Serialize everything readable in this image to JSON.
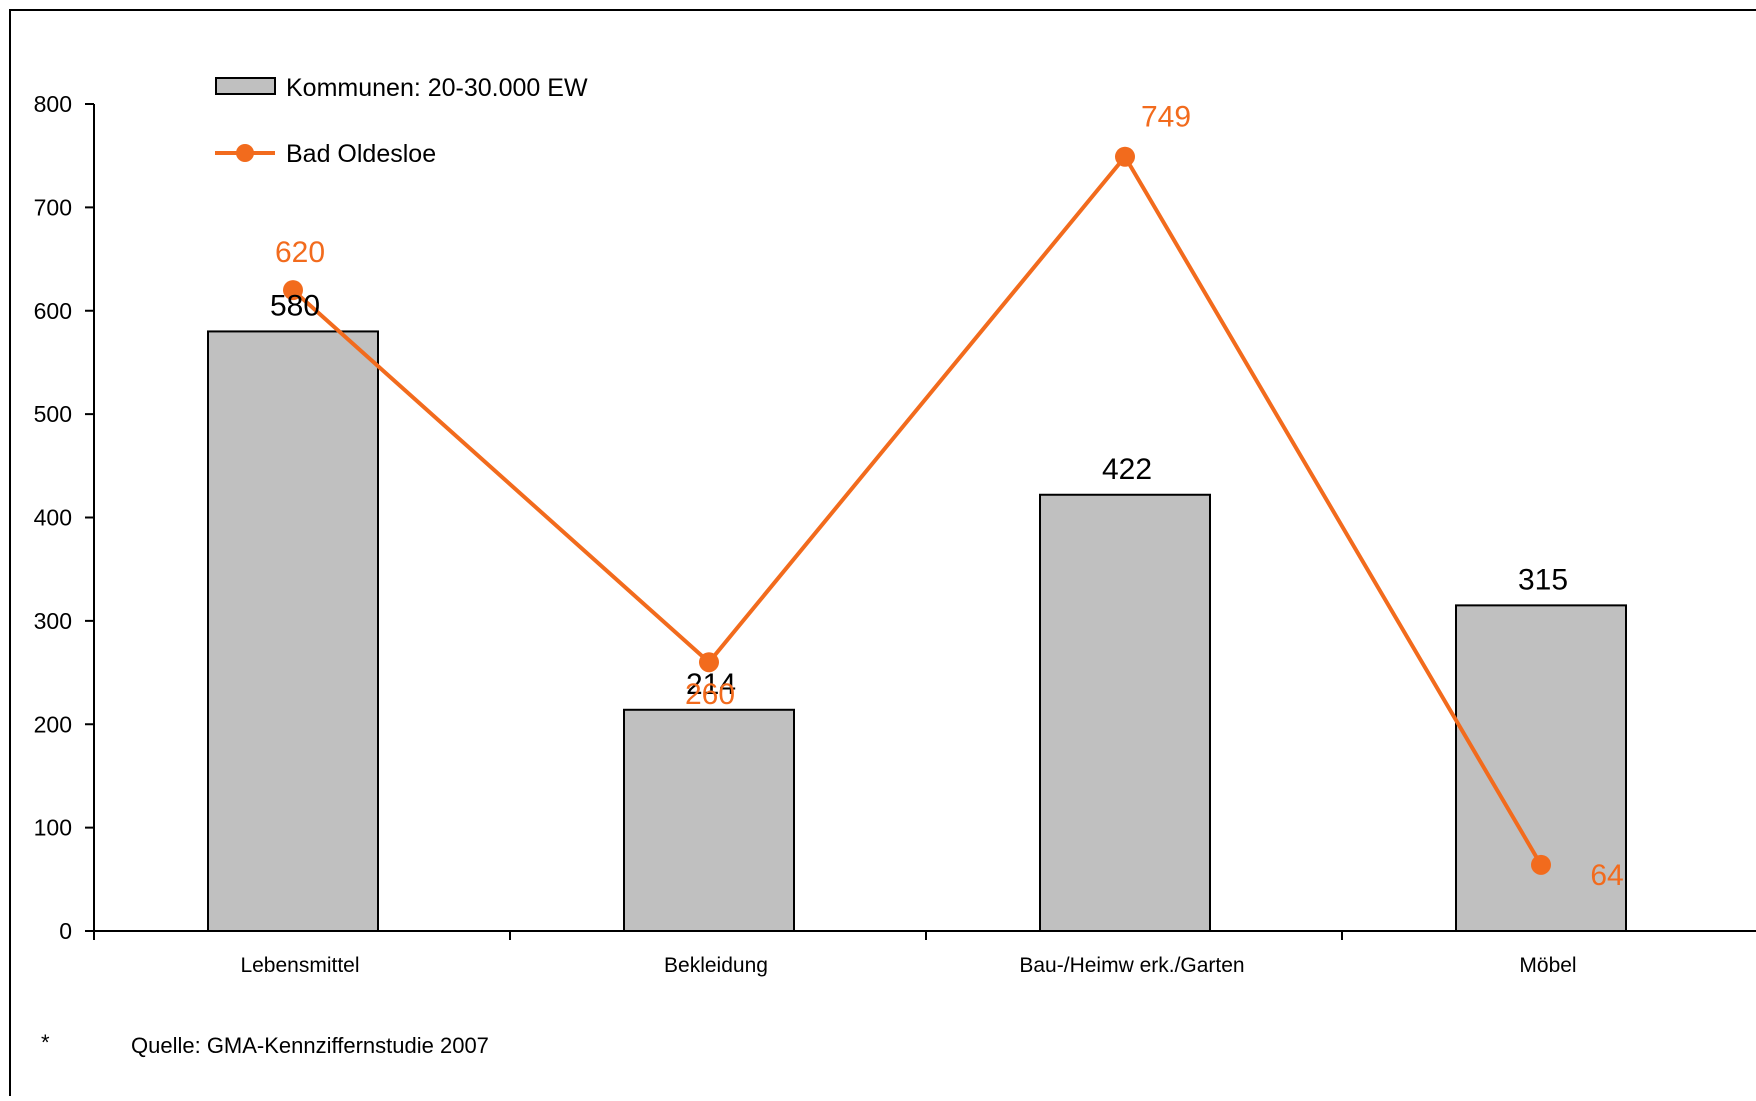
{
  "chart_data": {
    "type": "bar",
    "categories": [
      "Lebensmittel",
      "Bekleidung",
      "Bau-/Heimw erk./Garten",
      "Möbel"
    ],
    "ylim": [
      0,
      800
    ],
    "yticks": [
      "0",
      "100",
      "200",
      "300",
      "400",
      "500",
      "600",
      "700",
      "800"
    ],
    "grid": false,
    "legend_position": "top-left",
    "series": [
      {
        "name": "Kommunen: 20-30.000 EW",
        "type": "bar",
        "color": "#c0c0c0",
        "values": [
          580,
          214,
          422,
          315
        ],
        "labels": [
          "580",
          "214",
          "422",
          "315"
        ]
      },
      {
        "name": "Bad Oldesloe",
        "type": "line",
        "color": "#f26b1d",
        "values": [
          620,
          260,
          749,
          64
        ],
        "labels": [
          "620",
          "260",
          "749",
          "64"
        ]
      }
    ]
  },
  "footnote": {
    "marker": "*",
    "text": "Quelle: GMA-Kennziffernstudie 2007"
  }
}
